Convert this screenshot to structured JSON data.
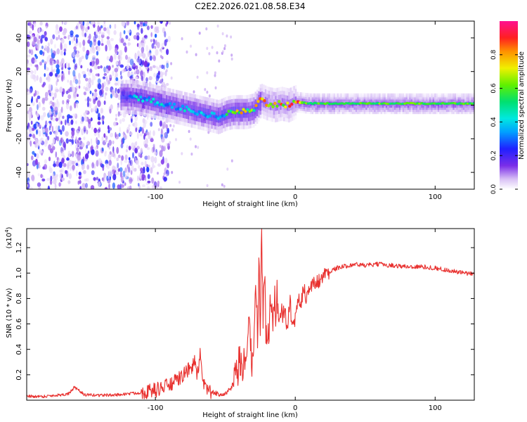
{
  "title": "C2E2.2026.021.08.58.E34",
  "chart_data": [
    {
      "type": "heatmap",
      "id": "spectrogram",
      "xlabel": "Height of straight line (km)",
      "ylabel": "Frequency (Hz)",
      "xlim": [
        -192,
        128
      ],
      "ylim": [
        -50,
        50
      ],
      "xticks": [
        -100,
        0,
        100
      ],
      "yticks": [
        -40,
        -20,
        0,
        20,
        40
      ],
      "colorbar": {
        "label": "Normalized spectral amplitude",
        "range": [
          0,
          1
        ],
        "ticks": [
          0.0,
          0.2,
          0.4,
          0.6,
          0.8
        ]
      },
      "ridge": {
        "x": [
          -118,
          -110,
          -100,
          -90,
          -80,
          -70,
          -60,
          -55,
          -50,
          -45,
          -40,
          -35,
          -30,
          -27,
          -25,
          -20,
          -15,
          -10,
          -5,
          0,
          10,
          20,
          40,
          60,
          80,
          100,
          128
        ],
        "y": [
          5,
          4,
          2,
          0,
          -2,
          -4,
          -6,
          -7,
          -5,
          -4,
          -4,
          -4,
          -3,
          0,
          3,
          1,
          0,
          1,
          0,
          2,
          1,
          1,
          1,
          1,
          1,
          1,
          1
        ]
      },
      "noise_region": [
        -192,
        -105
      ]
    },
    {
      "type": "line",
      "id": "snr",
      "xlabel": "Height of straight line (km)",
      "ylabel": "SNR (10 * v/v)",
      "multiplier": "(x10",
      "multiplier_exp": "4",
      "xlim": [
        -192,
        128
      ],
      "ylim": [
        0,
        1.35
      ],
      "xticks": [
        -100,
        0,
        100
      ],
      "yticks": [
        0.2,
        0.4,
        0.6,
        0.8,
        1.0,
        1.2
      ],
      "color": "#e8302e",
      "series": [
        {
          "name": "SNR",
          "x": [
            -192,
            -180,
            -170,
            -162,
            -158,
            -150,
            -140,
            -130,
            -120,
            -110,
            -100,
            -95,
            -90,
            -85,
            -80,
            -75,
            -72,
            -70,
            -68,
            -66,
            -62,
            -60,
            -55,
            -50,
            -45,
            -42,
            -40,
            -38,
            -35,
            -33,
            -31,
            -30,
            -29,
            -28,
            -27,
            -26,
            -25,
            -24,
            -23,
            -22,
            -21,
            -20,
            -19,
            -18,
            -17,
            -16,
            -15,
            -14,
            -13,
            -12,
            -10,
            -8,
            -6,
            -4,
            -2,
            0,
            2,
            4,
            6,
            8,
            10,
            14,
            18,
            22,
            26,
            30,
            34,
            38,
            42,
            50,
            60,
            70,
            80,
            90,
            100,
            110,
            120,
            128
          ],
          "y": [
            0.03,
            0.03,
            0.04,
            0.05,
            0.1,
            0.04,
            0.04,
            0.04,
            0.05,
            0.06,
            0.08,
            0.1,
            0.12,
            0.15,
            0.2,
            0.25,
            0.3,
            0.2,
            0.35,
            0.12,
            0.08,
            0.06,
            0.05,
            0.05,
            0.1,
            0.18,
            0.3,
            0.2,
            0.4,
            0.55,
            0.3,
            0.45,
            0.65,
            0.9,
            0.5,
            1.1,
            0.6,
            1.35,
            0.7,
            1.05,
            0.55,
            0.4,
            0.55,
            0.7,
            0.75,
            0.6,
            0.8,
            0.7,
            0.85,
            0.65,
            0.6,
            0.75,
            0.55,
            0.85,
            0.65,
            0.7,
            0.8,
            0.75,
            0.9,
            0.8,
            0.88,
            0.92,
            0.95,
            1.0,
            1.02,
            1.04,
            1.05,
            1.06,
            1.07,
            1.06,
            1.07,
            1.06,
            1.05,
            1.05,
            1.04,
            1.02,
            1.0,
            0.99
          ]
        }
      ]
    }
  ]
}
